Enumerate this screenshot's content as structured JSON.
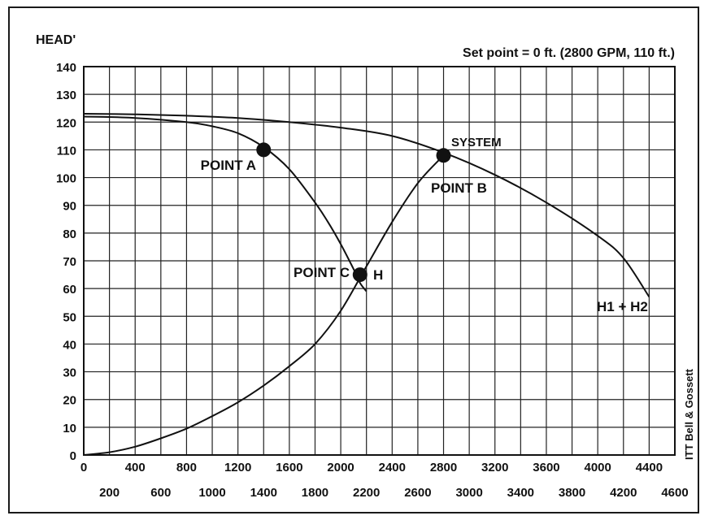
{
  "chart_data": {
    "type": "line",
    "ylabel": "HEAD'",
    "xlabel": "",
    "title": "",
    "subtitle": "Set point = 0 ft. (2800 GPM, 110 ft.)",
    "credit": "ITT Bell & Gossett",
    "xlim": [
      0,
      4600
    ],
    "ylim": [
      0,
      140
    ],
    "grid": true,
    "x_ticks_top": [
      "0",
      "400",
      "800",
      "1200",
      "1600",
      "2000",
      "2400",
      "2800",
      "3200",
      "3600",
      "4000",
      "4400"
    ],
    "x_ticks_bottom": [
      "200",
      "600",
      "1000",
      "1400",
      "1800",
      "2200",
      "2600",
      "3000",
      "3400",
      "3800",
      "4200",
      "4600"
    ],
    "y_ticks": [
      "0",
      "10",
      "20",
      "30",
      "40",
      "50",
      "60",
      "70",
      "80",
      "90",
      "100",
      "110",
      "120",
      "130",
      "140"
    ],
    "series": [
      {
        "name": "H",
        "x": [
          0,
          400,
          800,
          1000,
          1200,
          1400,
          1600,
          1800,
          1900,
          2000,
          2100,
          2150,
          2200
        ],
        "y": [
          122,
          121.5,
          120,
          118.5,
          116,
          111,
          103,
          91,
          84,
          76,
          67,
          62,
          59
        ]
      },
      {
        "name": "H1 + H2",
        "x": [
          0,
          400,
          800,
          1200,
          1600,
          2000,
          2400,
          2800,
          3200,
          3600,
          4000,
          4200,
          4400
        ],
        "y": [
          123,
          122.8,
          122.3,
          121.5,
          120,
          118,
          115,
          109,
          101,
          91,
          79,
          71,
          57
        ]
      },
      {
        "name": "SYSTEM",
        "x": [
          0,
          200,
          400,
          600,
          800,
          1000,
          1200,
          1400,
          1600,
          1800,
          2000,
          2200,
          2400,
          2600,
          2800
        ],
        "y": [
          0,
          1,
          3,
          6,
          9.5,
          14,
          19,
          25,
          32,
          40,
          52,
          68,
          84,
          98,
          108
        ]
      }
    ],
    "points": [
      {
        "label": "POINT A",
        "x": 1400,
        "y": 110
      },
      {
        "label": "POINT B",
        "x": 2800,
        "y": 108
      },
      {
        "label": "POINT C",
        "x": 2150,
        "y": 65
      }
    ]
  }
}
